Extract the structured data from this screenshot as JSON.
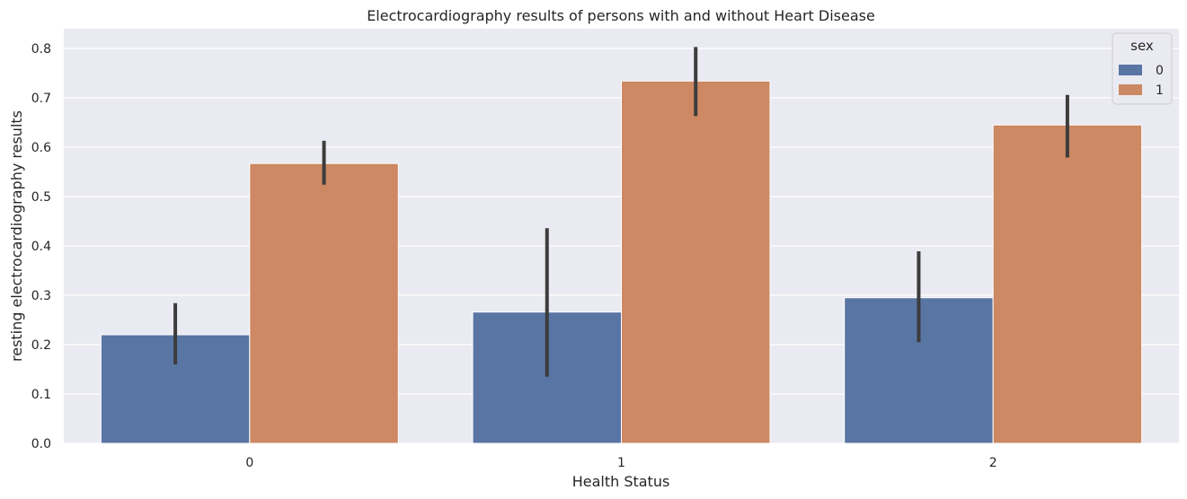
{
  "chart_data": {
    "type": "bar",
    "title": "Electrocardiography results of persons with and without Heart Disease",
    "xlabel": "Health Status",
    "ylabel": "resting electrocardiography results",
    "categories": [
      "0",
      "1",
      "2"
    ],
    "ylim": [
      0,
      0.84
    ],
    "yticks": [
      0.0,
      0.1,
      0.2,
      0.3,
      0.4,
      0.5,
      0.6,
      0.7,
      0.8
    ],
    "ytick_labels": [
      "0.0",
      "0.1",
      "0.2",
      "0.3",
      "0.4",
      "0.5",
      "0.6",
      "0.7",
      "0.8"
    ],
    "grid": true,
    "legend": {
      "title": "sex",
      "position": "top-right"
    },
    "series": [
      {
        "name": "0",
        "color": "#5975a4",
        "values": [
          0.22,
          0.266,
          0.295
        ],
        "ci_low": [
          0.16,
          0.135,
          0.205
        ],
        "ci_high": [
          0.284,
          0.436,
          0.389
        ]
      },
      {
        "name": "1",
        "color": "#cc8963",
        "values": [
          0.567,
          0.734,
          0.645
        ],
        "ci_low": [
          0.524,
          0.663,
          0.579
        ],
        "ci_high": [
          0.613,
          0.803,
          0.706
        ]
      }
    ],
    "errorbar_color": "#3c3c3c",
    "background_color": "#eaeaf2"
  }
}
